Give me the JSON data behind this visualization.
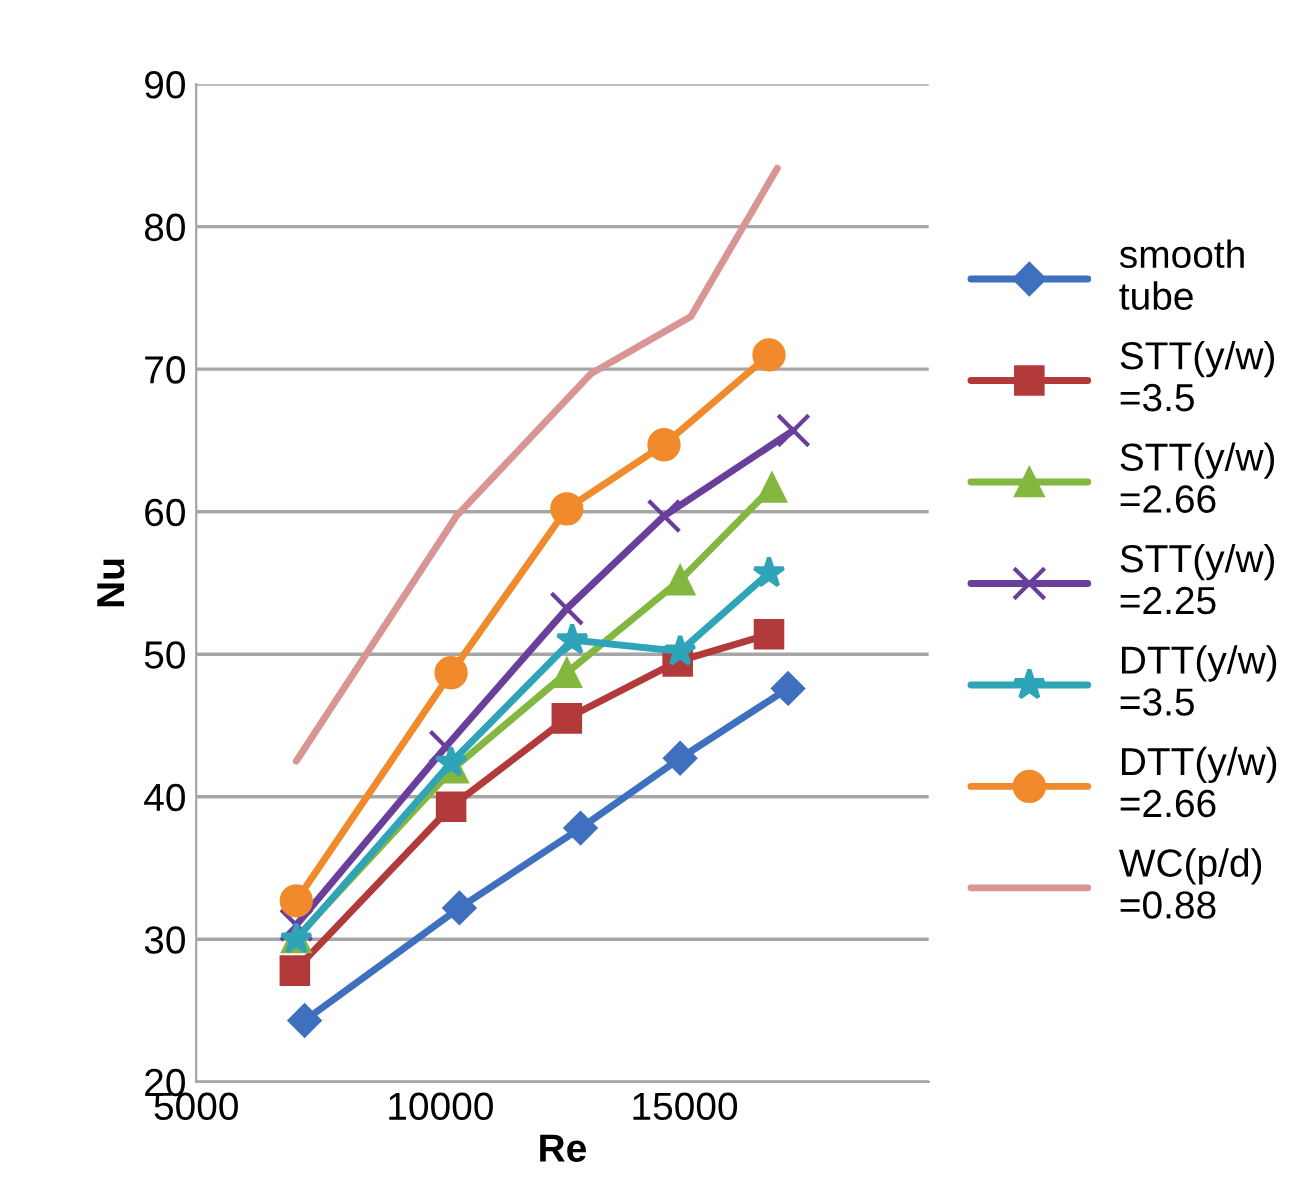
{
  "chart_data": {
    "type": "line",
    "xlabel": "Re",
    "ylabel": "Nu",
    "xlim": [
      5000,
      20000
    ],
    "xticks": [
      5000,
      10000,
      15000
    ],
    "ylim": [
      20,
      90
    ],
    "yticks": [
      20,
      30,
      40,
      50,
      60,
      70,
      80,
      90
    ],
    "grid": "y",
    "legend": "right",
    "series": [
      {
        "name": "smooth\ntube",
        "color": "#3f6fbf",
        "marker": "diamond",
        "x": [
          7220,
          10390,
          12870,
          14910,
          17120
        ],
        "values": [
          24.3,
          32.2,
          37.8,
          42.7,
          47.6
        ]
      },
      {
        "name": "STT(y/w)\n=3.5",
        "color": "#b23a3a",
        "marker": "square",
        "x": [
          7020,
          10220,
          12590,
          14860,
          16730
        ],
        "values": [
          27.8,
          39.3,
          45.5,
          49.5,
          51.4
        ]
      },
      {
        "name": "STT(y/w)\n=2.66",
        "color": "#84b740",
        "marker": "triangle",
        "x": [
          7050,
          10270,
          12590,
          14910,
          16790
        ],
        "values": [
          30.1,
          42.0,
          48.7,
          55.2,
          61.7
        ]
      },
      {
        "name": "STT(y/w)\n=2.25",
        "color": "#6a3f9c",
        "marker": "cross",
        "x": [
          7050,
          10110,
          12590,
          14580,
          17230
        ],
        "values": [
          31.0,
          43.5,
          53.2,
          59.7,
          65.7
        ]
      },
      {
        "name": "DTT(y/w)\n=3.5",
        "color": "#2fa4b8",
        "marker": "star",
        "x": [
          7050,
          10220,
          12700,
          14910,
          16730
        ],
        "values": [
          30.0,
          42.4,
          51.0,
          50.2,
          55.7
        ]
      },
      {
        "name": "DTT(y/w)\n=2.66",
        "color": "#f08a2a",
        "marker": "circle",
        "x": [
          7050,
          10220,
          12590,
          14580,
          16730
        ],
        "values": [
          32.7,
          48.7,
          60.2,
          64.7,
          71.0
        ]
      },
      {
        "name": "WC(p/d)\n=0.88",
        "color": "#d99494",
        "marker": "none",
        "x": [
          7050,
          10330,
          13090,
          15130,
          16900
        ],
        "values": [
          42.5,
          59.7,
          69.7,
          73.7,
          84.1
        ]
      }
    ]
  }
}
